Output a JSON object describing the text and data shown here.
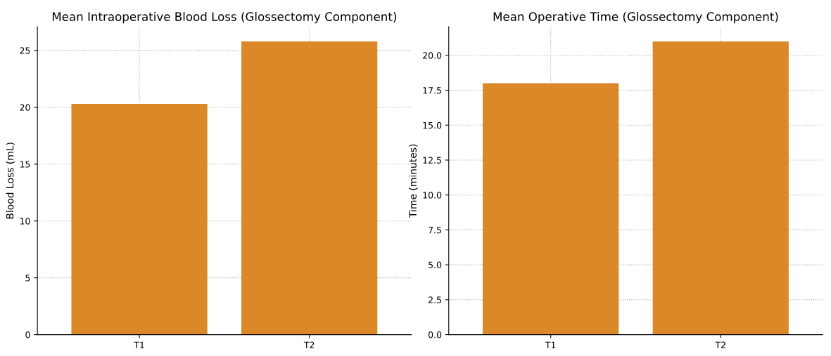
{
  "chart_data": [
    {
      "type": "bar",
      "title": "Mean Intraoperative Blood Loss (Glossectomy Component)",
      "ylabel": "Blood Loss (mL)",
      "categories": [
        "T1",
        "T2"
      ],
      "values": [
        20.3,
        25.8
      ],
      "color": "#da8828",
      "ylim": [
        0,
        27.09
      ],
      "yticks": [
        0,
        5,
        10,
        15,
        20,
        25
      ],
      "grid": true
    },
    {
      "type": "bar",
      "title": "Mean Operative Time (Glossectomy Component)",
      "ylabel": "Time (minutes)",
      "categories": [
        "T1",
        "T2"
      ],
      "values": [
        18.0,
        21.0
      ],
      "color": "#da8828",
      "ylim": [
        0,
        22.05
      ],
      "yticks": [
        {
          "value": 0,
          "label": "0.0"
        },
        {
          "value": 2.5,
          "label": "2.5"
        },
        {
          "value": 5,
          "label": "5.0"
        },
        {
          "value": 7.5,
          "label": "7.5"
        },
        {
          "value": 10,
          "label": "10.0"
        },
        {
          "value": 12.5,
          "label": "12.5"
        },
        {
          "value": 15,
          "label": "15.0"
        },
        {
          "value": 17.5,
          "label": "17.5"
        },
        {
          "value": 20,
          "label": "20.0"
        }
      ],
      "grid": true
    }
  ]
}
